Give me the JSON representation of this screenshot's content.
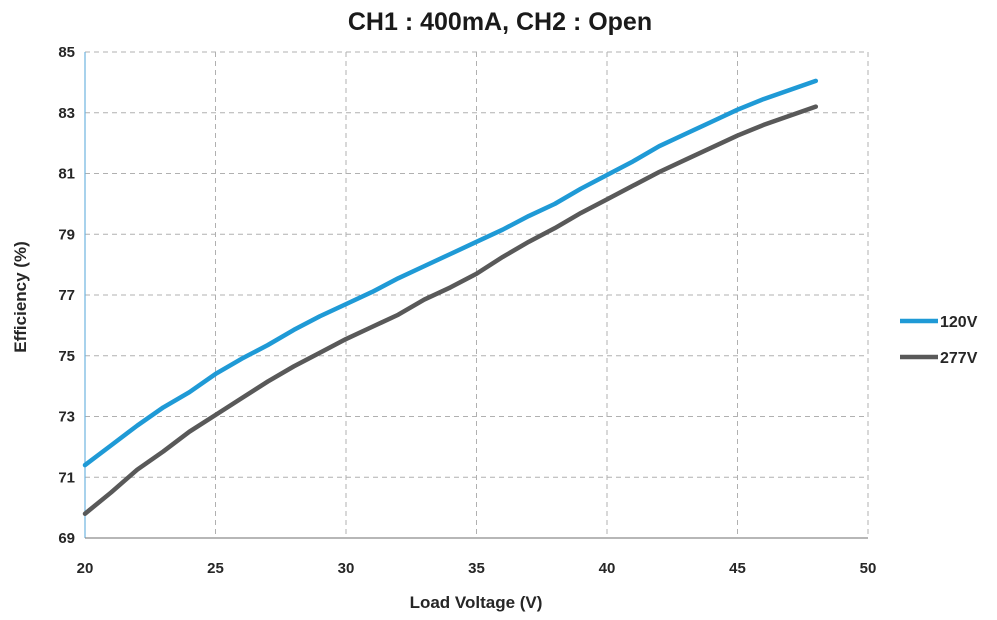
{
  "chart_data": {
    "type": "line",
    "title": "CH1 : 400mA, CH2 : Open",
    "xlabel": "Load Voltage (V)",
    "ylabel": "Efficiency (%)",
    "xlim": [
      20,
      50
    ],
    "ylim": [
      69,
      85
    ],
    "xticks": [
      20,
      25,
      30,
      35,
      40,
      45,
      50
    ],
    "yticks": [
      69,
      71,
      73,
      75,
      77,
      79,
      81,
      83,
      85
    ],
    "grid": true,
    "legend_position": "right",
    "series": [
      {
        "name": "120V",
        "color": "#1f9ad6",
        "x": [
          20,
          21,
          22,
          23,
          24,
          25,
          26,
          27,
          28,
          29,
          30,
          31,
          32,
          33,
          34,
          35,
          36,
          37,
          38,
          39,
          40,
          41,
          42,
          43,
          44,
          45,
          46,
          47,
          48
        ],
        "y": [
          71.4,
          72.05,
          72.7,
          73.3,
          73.8,
          74.4,
          74.9,
          75.35,
          75.85,
          76.3,
          76.7,
          77.1,
          77.55,
          77.95,
          78.35,
          78.75,
          79.15,
          79.6,
          80.0,
          80.5,
          80.95,
          81.4,
          81.9,
          82.3,
          82.7,
          83.1,
          83.45,
          83.75,
          84.05
        ]
      },
      {
        "name": "277V",
        "color": "#595959",
        "x": [
          20,
          21,
          22,
          23,
          24,
          25,
          26,
          27,
          28,
          29,
          30,
          31,
          32,
          33,
          34,
          35,
          36,
          37,
          38,
          39,
          40,
          41,
          42,
          43,
          44,
          45,
          46,
          47,
          48
        ],
        "y": [
          69.8,
          70.5,
          71.25,
          71.85,
          72.5,
          73.05,
          73.6,
          74.15,
          74.65,
          75.1,
          75.55,
          75.95,
          76.35,
          76.85,
          77.25,
          77.7,
          78.25,
          78.75,
          79.2,
          79.7,
          80.15,
          80.6,
          81.05,
          81.45,
          81.85,
          82.25,
          82.6,
          82.9,
          83.2
        ]
      }
    ]
  }
}
